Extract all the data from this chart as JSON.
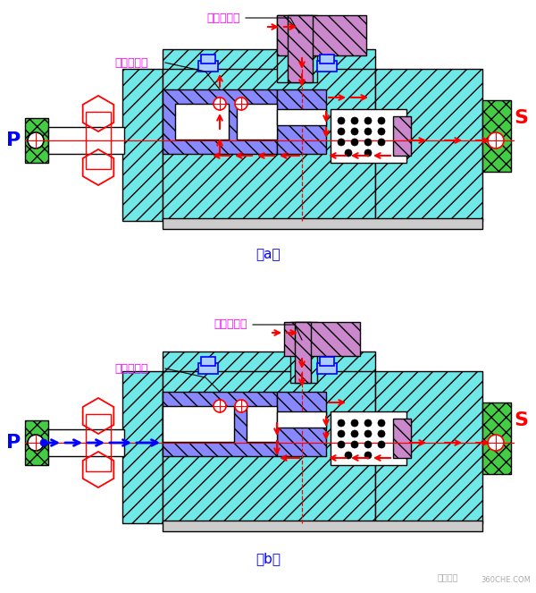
{
  "bg_color": "#ffffff",
  "cyan": "#70e8e8",
  "cyan_dark": "#40c8c8",
  "blue_hatch": "#8888ff",
  "purple_hatch": "#cc88cc",
  "green_hatch": "#44cc44",
  "red": "#ff0000",
  "blue": "#0000ff",
  "magenta": "#ff00ff",
  "black": "#000000",
  "gray_light": "#cccccc",
  "label_a": "（a）",
  "label_b": "（b）",
  "label_P": "P",
  "label_S": "S",
  "label_odd": "奇数档气管",
  "label_even": "偶数档气管",
  "fig_width": 6.0,
  "fig_height": 6.63
}
